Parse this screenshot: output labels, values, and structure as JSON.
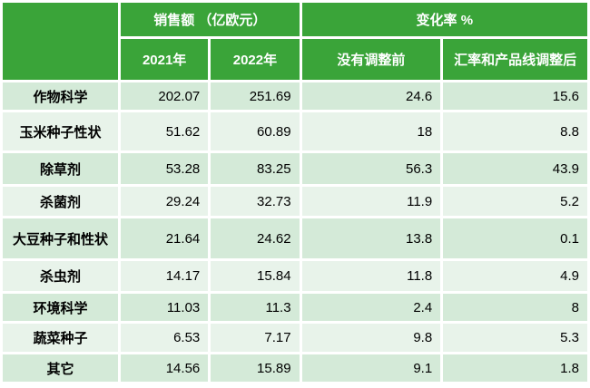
{
  "table": {
    "header": {
      "corner": "",
      "sales_group": "销售额 （亿欧元）",
      "change_group": "变化率 %",
      "col_2021": "2021年",
      "col_2022": "2022年",
      "col_before_adjust": "没有调整前",
      "col_after_adjust": "汇率和产品线调整后"
    },
    "rows": [
      {
        "label": "作物科学",
        "v": [
          "202.07",
          "251.69",
          "24.6",
          "15.6"
        ]
      },
      {
        "label": "玉米种子性状",
        "v": [
          "51.62",
          "60.89",
          "18",
          "8.8"
        ]
      },
      {
        "label": "除草剂",
        "v": [
          "53.28",
          "83.25",
          "56.3",
          "43.9"
        ]
      },
      {
        "label": "杀菌剂",
        "v": [
          "29.24",
          "32.73",
          "11.9",
          "5.2"
        ]
      },
      {
        "label": "大豆种子和性状",
        "v": [
          "21.64",
          "24.62",
          "13.8",
          "0.1"
        ]
      },
      {
        "label": "杀虫剂",
        "v": [
          "14.17",
          "15.84",
          "11.8",
          "4.9"
        ]
      },
      {
        "label": "环境科学",
        "v": [
          "11.03",
          "11.3",
          "2.4",
          "8"
        ]
      },
      {
        "label": "蔬菜种子",
        "v": [
          "6.53",
          "7.17",
          "9.8",
          "5.3"
        ]
      },
      {
        "label": "其它",
        "v": [
          "14.56",
          "15.89",
          "9.1",
          "1.8"
        ]
      }
    ]
  },
  "chart_data": {
    "type": "table",
    "title": "",
    "column_groups": [
      {
        "label": "销售额 （亿欧元）",
        "span": [
          "2021年",
          "2022年"
        ]
      },
      {
        "label": "变化率 %",
        "span": [
          "没有调整前",
          "汇率和产品线调整后"
        ]
      }
    ],
    "columns": [
      "2021年",
      "2022年",
      "没有调整前",
      "汇率和产品线调整后"
    ],
    "row_labels": [
      "作物科学",
      "玉米种子性状",
      "除草剂",
      "杀菌剂",
      "大豆种子和性状",
      "杀虫剂",
      "环境科学",
      "蔬菜种子",
      "其它"
    ],
    "rows": [
      [
        202.07,
        251.69,
        24.6,
        15.6
      ],
      [
        51.62,
        60.89,
        18,
        8.8
      ],
      [
        53.28,
        83.25,
        56.3,
        43.9
      ],
      [
        29.24,
        32.73,
        11.9,
        5.2
      ],
      [
        21.64,
        24.62,
        13.8,
        0.1
      ],
      [
        14.17,
        15.84,
        11.8,
        4.9
      ],
      [
        11.03,
        11.3,
        2.4,
        8
      ],
      [
        6.53,
        7.17,
        9.8,
        5.3
      ],
      [
        14.56,
        15.89,
        9.1,
        1.8
      ]
    ]
  },
  "colors": {
    "header_bg": "#3aa439",
    "header_text": "#ffffff",
    "row_odd_bg": "#d4ead8",
    "row_even_bg": "#e8f3ea",
    "body_text": "#000000",
    "gap": "#ffffff"
  }
}
